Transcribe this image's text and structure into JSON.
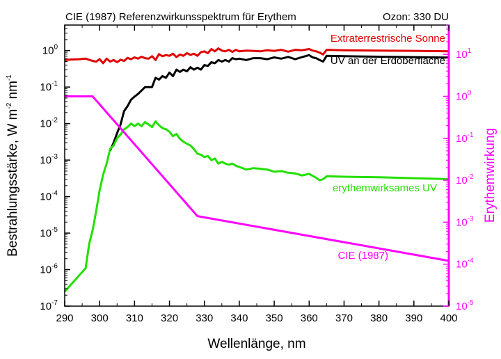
{
  "chart_data": {
    "type": "line",
    "title": "CIE (1987) Referenzwirkunsspektrum für Erythem",
    "subtitle": "Ozon: 330 DU",
    "xlabel": "Wellenlänge, nm",
    "ylabel_left": "Bestrahlungsstärke, W m-2 nm-1",
    "ylabel_right": "Erythemwirkung",
    "xlim": [
      290,
      400
    ],
    "ylim_left": [
      1e-07,
      5
    ],
    "ylim_right": [
      1e-05,
      50
    ],
    "scale_left": "log",
    "scale_right": "log",
    "x_ticks": [
      290,
      300,
      310,
      320,
      330,
      340,
      350,
      360,
      370,
      380,
      390,
      400
    ],
    "y_left_ticks": [
      {
        "value": 1e-07,
        "mantissa": "10",
        "exp": "-7"
      },
      {
        "value": 1e-06,
        "mantissa": "10",
        "exp": "-6"
      },
      {
        "value": 1e-05,
        "mantissa": "10",
        "exp": "-5"
      },
      {
        "value": 0.0001,
        "mantissa": "10",
        "exp": "-4"
      },
      {
        "value": 0.001,
        "mantissa": "10",
        "exp": "-3"
      },
      {
        "value": 0.01,
        "mantissa": "10",
        "exp": "-2"
      },
      {
        "value": 0.1,
        "mantissa": "10",
        "exp": "-1"
      },
      {
        "value": 1,
        "mantissa": "10",
        "exp": "0"
      }
    ],
    "y_right_ticks": [
      {
        "value": 1e-05,
        "mantissa": "10",
        "exp": "-5"
      },
      {
        "value": 0.0001,
        "mantissa": "10",
        "exp": "-4"
      },
      {
        "value": 0.001,
        "mantissa": "10",
        "exp": "-3"
      },
      {
        "value": 0.01,
        "mantissa": "10",
        "exp": "-2"
      },
      {
        "value": 0.1,
        "mantissa": "10",
        "exp": "-1"
      },
      {
        "value": 1,
        "mantissa": "10",
        "exp": "0"
      },
      {
        "value": 10,
        "mantissa": "10",
        "exp": "1"
      }
    ],
    "series": [
      {
        "name": "Extraterrestrische Sonne",
        "axis": "left",
        "color": "#e00000",
        "x": [
          290,
          292,
          294,
          296,
          298,
          299,
          300,
          301,
          302,
          303,
          304,
          305,
          306,
          307,
          308,
          309,
          310,
          311,
          312,
          313,
          314,
          315,
          316,
          317,
          318,
          319,
          320,
          321,
          322,
          323,
          324,
          325,
          326,
          327,
          328,
          329,
          330,
          331,
          332,
          333,
          334,
          335,
          336,
          337,
          338,
          339,
          340,
          342,
          344,
          346,
          348,
          350,
          352,
          354,
          356,
          358,
          360,
          361,
          362,
          363,
          364,
          365,
          370,
          380,
          390,
          400
        ],
        "y": [
          0.55,
          0.57,
          0.58,
          0.6,
          0.52,
          0.5,
          0.58,
          0.45,
          0.6,
          0.5,
          0.55,
          0.48,
          0.56,
          0.52,
          0.63,
          0.58,
          0.65,
          0.6,
          0.68,
          0.62,
          0.6,
          0.7,
          0.55,
          0.8,
          0.7,
          0.75,
          0.72,
          0.82,
          0.66,
          0.78,
          0.72,
          0.85,
          0.76,
          0.82,
          0.72,
          0.9,
          0.95,
          0.85,
          1.1,
          0.95,
          1.15,
          1.0,
          0.95,
          1.05,
          0.92,
          1.05,
          0.95,
          1.0,
          0.98,
          0.95,
          1.02,
          0.98,
          1.05,
          0.93,
          1.05,
          1.02,
          1.1,
          1.0,
          0.95,
          0.88,
          0.78,
          1.05,
          1.02,
          1.0,
          0.98,
          0.95
        ]
      },
      {
        "name": "UV an der Erdoberfläche",
        "axis": "left",
        "color": "#000000",
        "x": [
          303,
          304,
          305,
          306,
          307,
          308,
          309,
          310,
          311,
          312,
          313,
          314,
          315,
          316,
          317,
          318,
          319,
          320,
          321,
          322,
          323,
          324,
          325,
          326,
          327,
          328,
          329,
          330,
          331,
          332,
          333,
          334,
          335,
          336,
          337,
          338,
          339,
          340,
          342,
          344,
          346,
          348,
          350,
          352,
          354,
          356,
          358,
          360,
          361,
          362,
          363,
          364,
          365,
          370,
          380,
          390,
          400
        ],
        "y": [
          0.0018,
          0.003,
          0.0055,
          0.0095,
          0.022,
          0.03,
          0.045,
          0.055,
          0.065,
          0.08,
          0.1,
          0.1,
          0.1,
          0.18,
          0.16,
          0.2,
          0.18,
          0.25,
          0.2,
          0.3,
          0.26,
          0.3,
          0.27,
          0.35,
          0.3,
          0.34,
          0.3,
          0.4,
          0.38,
          0.48,
          0.45,
          0.55,
          0.5,
          0.55,
          0.5,
          0.62,
          0.58,
          0.6,
          0.55,
          0.62,
          0.62,
          0.58,
          0.65,
          0.6,
          0.67,
          0.58,
          0.66,
          0.75,
          0.65,
          0.62,
          0.55,
          0.5,
          0.72,
          0.7,
          0.68,
          0.66,
          0.64
        ]
      },
      {
        "name": "erythemwirksames UV",
        "axis": "left",
        "color": "#22e000",
        "x": [
          290,
          296,
          297,
          298,
          299,
          300,
          301,
          302,
          303,
          304,
          305,
          306,
          307,
          308,
          309,
          310,
          311,
          312,
          313,
          314,
          315,
          316,
          317,
          318,
          319,
          320,
          321,
          322,
          323,
          324,
          325,
          326,
          327,
          328,
          329,
          330,
          331,
          332,
          333,
          334,
          335,
          336,
          337,
          338,
          339,
          340,
          342,
          344,
          346,
          348,
          350,
          352,
          354,
          356,
          358,
          360,
          361,
          362,
          363,
          364,
          365,
          370,
          380,
          390,
          400
        ],
        "y": [
          2.5e-07,
          1.1e-06,
          5e-06,
          1.2e-05,
          4e-05,
          0.00015,
          0.0004,
          0.0008,
          0.002,
          0.0025,
          0.004,
          0.005,
          0.007,
          0.008,
          0.01,
          0.0085,
          0.01,
          0.0085,
          0.011,
          0.0095,
          0.008,
          0.0115,
          0.009,
          0.0075,
          0.007,
          0.006,
          0.0045,
          0.0052,
          0.0038,
          0.0032,
          0.0028,
          0.0025,
          0.002,
          0.0015,
          0.0014,
          0.0012,
          0.0013,
          0.001,
          0.0011,
          0.0008,
          0.0009,
          0.0008,
          0.00075,
          0.0008,
          0.0007,
          0.00065,
          0.00055,
          0.0006,
          0.00058,
          0.00055,
          0.00048,
          0.0005,
          0.00045,
          0.00043,
          0.00038,
          0.00042,
          0.00037,
          0.00033,
          0.00028,
          0.0003,
          0.00036,
          0.00035,
          0.00034,
          0.00032,
          0.0003
        ]
      },
      {
        "name": "CIE (1987)",
        "axis": "right",
        "color": "#ff00ff",
        "x": [
          290,
          298,
          328,
          400
        ],
        "y": [
          1.0,
          1.0,
          0.0014,
          0.00012
        ]
      }
    ]
  }
}
